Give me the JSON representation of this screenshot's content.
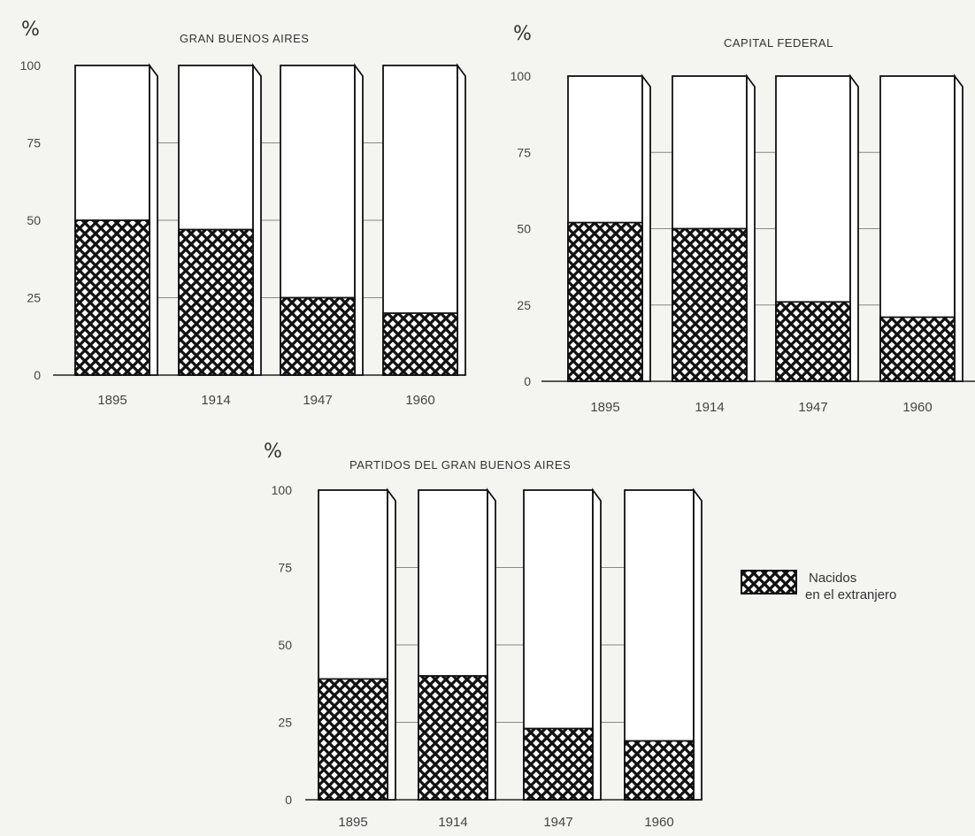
{
  "legend": {
    "line1": "Nacidos",
    "line2": "en el extranjero"
  },
  "chart_data": [
    {
      "type": "bar",
      "title": "GRAN BUENOS AIRES",
      "unit_label": "%",
      "yticks": [
        "0",
        "25",
        "50",
        "75",
        "100"
      ],
      "categories": [
        "1895",
        "1914",
        "1947",
        "1960"
      ],
      "series": [
        {
          "name": "Nacidos en el extranjero",
          "values": [
            50,
            47,
            25,
            20
          ]
        }
      ],
      "ylim": [
        0,
        100
      ]
    },
    {
      "type": "bar",
      "title": "CAPITAL FEDERAL",
      "unit_label": "%",
      "yticks": [
        "0",
        "25",
        "50",
        "75",
        "100"
      ],
      "categories": [
        "1895",
        "1914",
        "1947",
        "1960"
      ],
      "series": [
        {
          "name": "Nacidos en el extranjero",
          "values": [
            52,
            50,
            26,
            21
          ]
        }
      ],
      "ylim": [
        0,
        100
      ]
    },
    {
      "type": "bar",
      "title": "PARTIDOS DEL GRAN BUENOS AIRES",
      "unit_label": "%",
      "yticks": [
        "0",
        "25",
        "50",
        "75",
        "100"
      ],
      "categories": [
        "1895",
        "1914",
        "1947",
        "1960"
      ],
      "series": [
        {
          "name": "Nacidos en el extranjero",
          "values": [
            39,
            40,
            23,
            19
          ]
        }
      ],
      "ylim": [
        0,
        100
      ]
    }
  ]
}
